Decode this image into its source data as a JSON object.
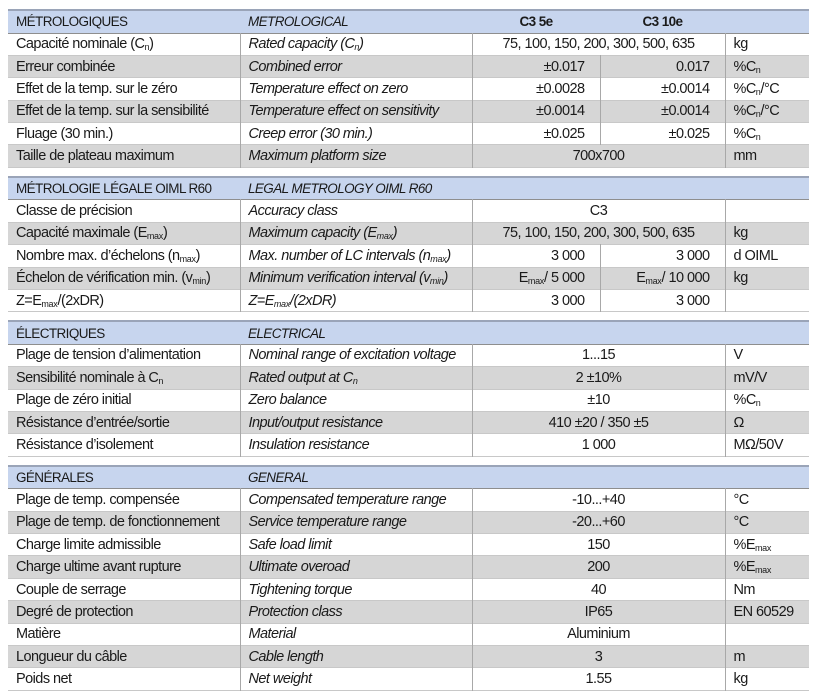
{
  "sections": [
    {
      "title_fr": "MÉTROLOGIQUES",
      "title_en": "METROLOGICAL",
      "models": [
        "C3 5e",
        "C3 10e"
      ],
      "rows": [
        {
          "fr": [
            "Capacité nominale (C",
            {
              "sub": "n"
            },
            ")"
          ],
          "en": [
            "Rated capacity (C",
            {
              "sub": "n"
            },
            ")"
          ],
          "merged": [
            "75, 100, 150, 200, 300, 500, 635"
          ],
          "unit": [
            "kg"
          ]
        },
        {
          "fr": [
            "Erreur combinée"
          ],
          "en": [
            "Combined error"
          ],
          "v1": [
            "±0.017"
          ],
          "v2": [
            "0.017"
          ],
          "unit": [
            "%C",
            {
              "sub": "n"
            }
          ]
        },
        {
          "fr": [
            "Effet de la temp. sur le zéro"
          ],
          "en": [
            "Temperature effect on zero"
          ],
          "v1": [
            "±0.0028"
          ],
          "v2": [
            "±0.0014"
          ],
          "unit": [
            "%C",
            {
              "sub": "n"
            },
            "/°C"
          ]
        },
        {
          "fr": [
            "Effet de la temp. sur la sensibilité"
          ],
          "en": [
            "Temperature effect on sensitivity"
          ],
          "v1": [
            "±0.0014"
          ],
          "v2": [
            "±0.0014"
          ],
          "unit": [
            "%C",
            {
              "sub": "n"
            },
            "/°C"
          ]
        },
        {
          "fr": [
            "Fluage (30 min.)"
          ],
          "en": [
            "Creep error (30 min.)"
          ],
          "v1": [
            "±0.025"
          ],
          "v2": [
            "±0.025"
          ],
          "unit": [
            "%C",
            {
              "sub": "n"
            }
          ]
        },
        {
          "fr": [
            "Taille de plateau maximum"
          ],
          "en": [
            "Maximum platform size"
          ],
          "merged": [
            "700x700"
          ],
          "unit": [
            "mm"
          ]
        }
      ]
    },
    {
      "title_fr": "MÉTROLOGIE LÉGALE OIML R60",
      "title_en": "LEGAL METROLOGY OIML R60",
      "rows": [
        {
          "fr": [
            "Classe de précision"
          ],
          "en": [
            "Accuracy class"
          ],
          "merged": [
            "C3"
          ],
          "unit": [
            ""
          ]
        },
        {
          "fr": [
            "Capacité maximale (E",
            {
              "sub": "max"
            },
            ")"
          ],
          "en": [
            "Maximum capacity (E",
            {
              "sub": "max"
            },
            ")"
          ],
          "merged": [
            "75, 100, 150, 200, 300, 500, 635"
          ],
          "unit": [
            "kg"
          ]
        },
        {
          "fr": [
            "Nombre max. d’échelons (n",
            {
              "sub": "max"
            },
            ")"
          ],
          "en": [
            "Max. number of LC intervals (n",
            {
              "sub": "max"
            },
            ")"
          ],
          "v1": [
            "3 000"
          ],
          "v2": [
            "3 000"
          ],
          "unit": [
            "d OIML"
          ]
        },
        {
          "fr": [
            "Échelon de vérification min. (v",
            {
              "sub": "min"
            },
            ")"
          ],
          "en": [
            "Minimum verification interval (v",
            {
              "sub": "min"
            },
            ")"
          ],
          "v1": [
            "E",
            {
              "sub": "max"
            },
            "/ 5 000"
          ],
          "v2": [
            "E",
            {
              "sub": "max"
            },
            "/ 10 000"
          ],
          "unit": [
            "kg"
          ]
        },
        {
          "fr": [
            "Z=E",
            {
              "sub": "max"
            },
            "/(2xDR)"
          ],
          "en": [
            "Z=E",
            {
              "sub": "max"
            },
            "/(2xDR)"
          ],
          "v1": [
            "3 000"
          ],
          "v2": [
            "3 000"
          ],
          "unit": [
            ""
          ]
        }
      ]
    },
    {
      "title_fr": "ÉLECTRIQUES",
      "title_en": "ELECTRICAL",
      "rows": [
        {
          "fr": [
            "Plage de tension d’alimentation"
          ],
          "en": [
            "Nominal range of excitation voltage"
          ],
          "merged": [
            "1...15"
          ],
          "unit": [
            "V"
          ]
        },
        {
          "fr": [
            "Sensibilité nominale à C",
            {
              "sub": "n"
            }
          ],
          "en": [
            "Rated output at C",
            {
              "sub": "n"
            }
          ],
          "merged": [
            "2 ±10%"
          ],
          "unit": [
            "mV/V"
          ]
        },
        {
          "fr": [
            "Plage de zéro initial"
          ],
          "en": [
            "Zero balance"
          ],
          "merged": [
            "±10"
          ],
          "unit": [
            "%C",
            {
              "sub": "n"
            }
          ]
        },
        {
          "fr": [
            "Résistance d’entrée/sortie"
          ],
          "en": [
            "Input/output resistance"
          ],
          "merged": [
            "410 ±20 / 350 ±5"
          ],
          "unit": [
            "Ω"
          ]
        },
        {
          "fr": [
            "Résistance d’isolement"
          ],
          "en": [
            "Insulation resistance"
          ],
          "merged": [
            "1 000"
          ],
          "unit": [
            "MΩ/50V"
          ]
        }
      ]
    },
    {
      "title_fr": "GÉNÉRALES",
      "title_en": "GENERAL",
      "rows": [
        {
          "fr": [
            "Plage de temp. compensée"
          ],
          "en": [
            "Compensated temperature range"
          ],
          "merged": [
            "-10...+40"
          ],
          "unit": [
            "°C"
          ]
        },
        {
          "fr": [
            "Plage de temp. de fonctionnement"
          ],
          "en": [
            "Service temperature range"
          ],
          "merged": [
            "-20...+60"
          ],
          "unit": [
            "°C"
          ]
        },
        {
          "fr": [
            "Charge limite admissible"
          ],
          "en": [
            "Safe load limit"
          ],
          "merged": [
            "150"
          ],
          "unit": [
            "%E",
            {
              "sub": "max"
            }
          ]
        },
        {
          "fr": [
            "Charge ultime avant rupture"
          ],
          "en": [
            "Ultimate overoad"
          ],
          "merged": [
            "200"
          ],
          "unit": [
            "%E",
            {
              "sub": "max"
            }
          ]
        },
        {
          "fr": [
            "Couple de serrage"
          ],
          "en": [
            "Tightening torque"
          ],
          "merged": [
            "40"
          ],
          "unit": [
            "Nm"
          ]
        },
        {
          "fr": [
            "Degré de protection"
          ],
          "en": [
            "Protection class"
          ],
          "merged": [
            "IP65"
          ],
          "unit": [
            "EN 60529"
          ]
        },
        {
          "fr": [
            "Matière"
          ],
          "en": [
            "Material"
          ],
          "merged": [
            "Aluminium"
          ],
          "unit": [
            ""
          ]
        },
        {
          "fr": [
            "Longueur du câble"
          ],
          "en": [
            "Cable length"
          ],
          "merged": [
            "3"
          ],
          "unit": [
            "m"
          ]
        },
        {
          "fr": [
            "Poids net"
          ],
          "en": [
            "Net weight"
          ],
          "merged": [
            "1.55"
          ],
          "unit": [
            "kg"
          ]
        }
      ]
    }
  ]
}
